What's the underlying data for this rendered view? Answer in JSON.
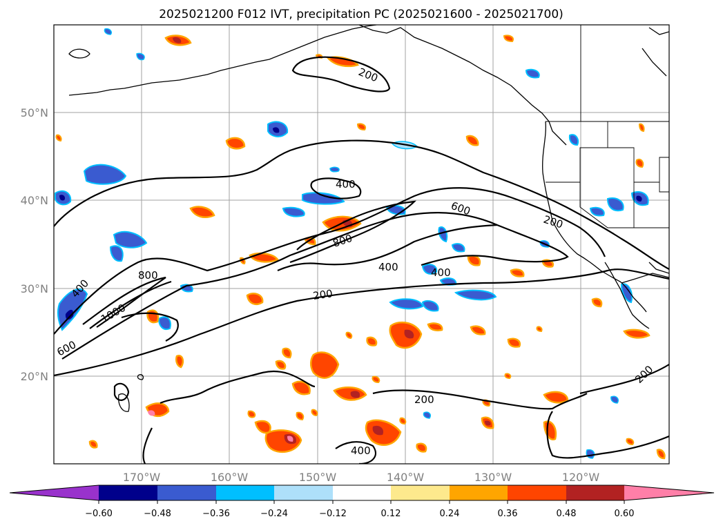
{
  "title": "2025021200 F012 IVT, precipitation PC (2025021600 - 2025021700)",
  "map": {
    "lon_labels": [
      "170°W",
      "160°W",
      "150°W",
      "140°W",
      "130°W",
      "120°W"
    ],
    "lat_labels": [
      "50°N",
      "40°N",
      "30°N",
      "20°N"
    ],
    "contour_labels": [
      "200",
      "400",
      "600",
      "200",
      "400",
      "800",
      "400",
      "200",
      "800",
      "1000",
      "600",
      "400",
      "200",
      "200",
      "400"
    ]
  },
  "colorbar": {
    "colors": [
      "#9932cc",
      "#00008b",
      "#3a5bd0",
      "#00bfff",
      "#aee0fa",
      "#ffffff",
      "#fde98d",
      "#ffa500",
      "#ff4500",
      "#b22222",
      "#ff7fa8"
    ],
    "tick_labels": [
      "−0.60",
      "−0.48",
      "−0.36",
      "−0.24",
      "−0.12",
      "0.12",
      "0.24",
      "0.36",
      "0.48",
      "0.60"
    ]
  }
}
